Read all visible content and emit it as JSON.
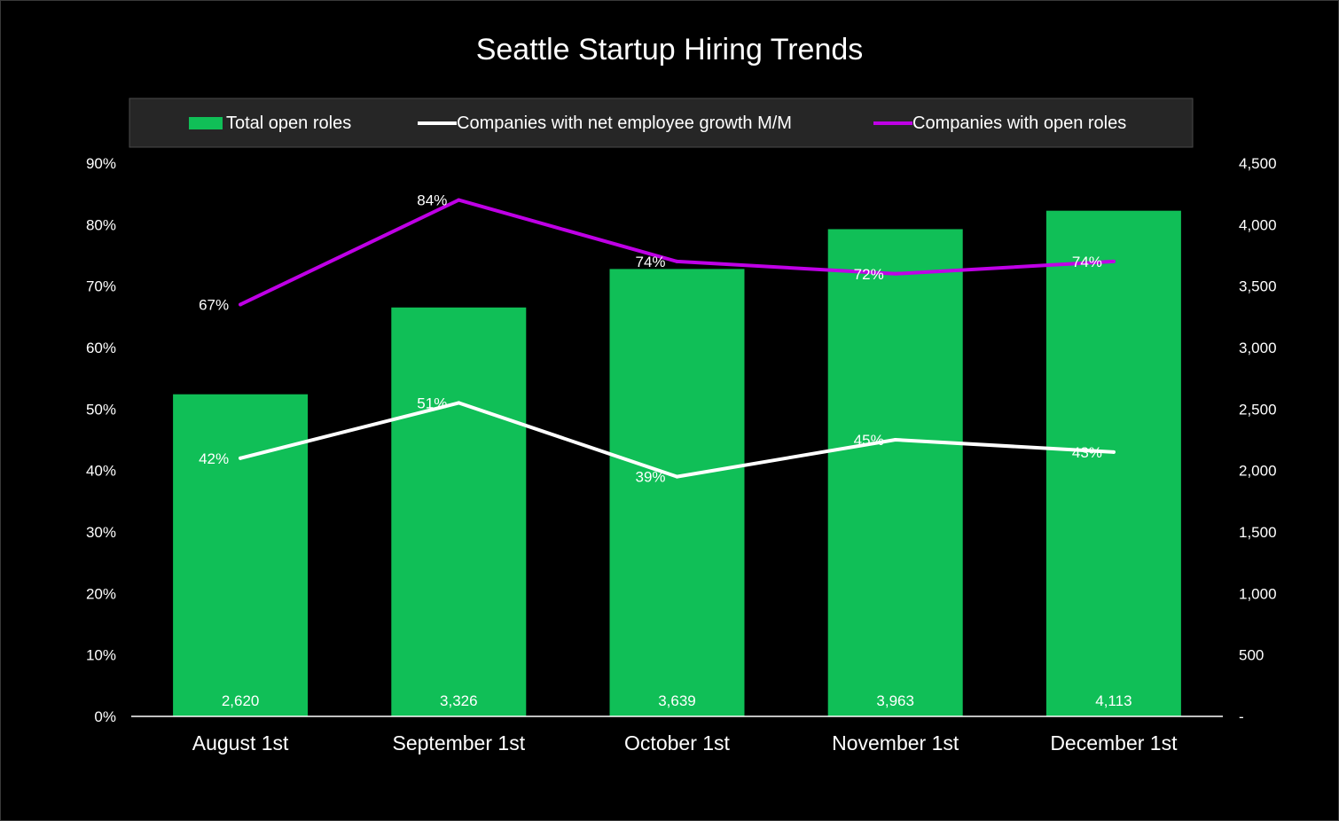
{
  "chart_data": {
    "type": "bar",
    "title": "Seattle Startup Hiring Trends",
    "categories": [
      "August 1st",
      "September 1st",
      "October 1st",
      "November 1st",
      "December 1st"
    ],
    "bar_series": {
      "name": "Total open roles",
      "axis": "right",
      "values": [
        2620,
        3326,
        3639,
        3963,
        4113
      ],
      "labels": [
        "2,620",
        "3,326",
        "3,639",
        "3,963",
        "4,113"
      ],
      "color": "#10BF57"
    },
    "line_series": [
      {
        "name": "Companies with net employee growth M/M",
        "axis": "left",
        "values": [
          42,
          51,
          39,
          45,
          43
        ],
        "labels": [
          "42%",
          "51%",
          "39%",
          "45%",
          "43%"
        ],
        "color": "#FFFFFF"
      },
      {
        "name": "Companies with open roles",
        "axis": "left",
        "values": [
          67,
          84,
          74,
          72,
          74
        ],
        "labels": [
          "67%",
          "84%",
          "74%",
          "72%",
          "74%"
        ],
        "color": "#BF00E6"
      }
    ],
    "left_axis": {
      "min": 0,
      "max": 90,
      "ticks": [
        "0%",
        "10%",
        "20%",
        "30%",
        "40%",
        "50%",
        "60%",
        "70%",
        "80%",
        "90%"
      ]
    },
    "right_axis": {
      "min": 0,
      "max": 4500,
      "ticks": [
        "-",
        "500",
        "1,000",
        "1,500",
        "2,000",
        "2,500",
        "3,000",
        "3,500",
        "4,000",
        "4,500"
      ]
    },
    "legend_position": "top",
    "grid": false,
    "background": "#000000",
    "text_color": "#FFFFFF",
    "legend_background": "#262626"
  }
}
